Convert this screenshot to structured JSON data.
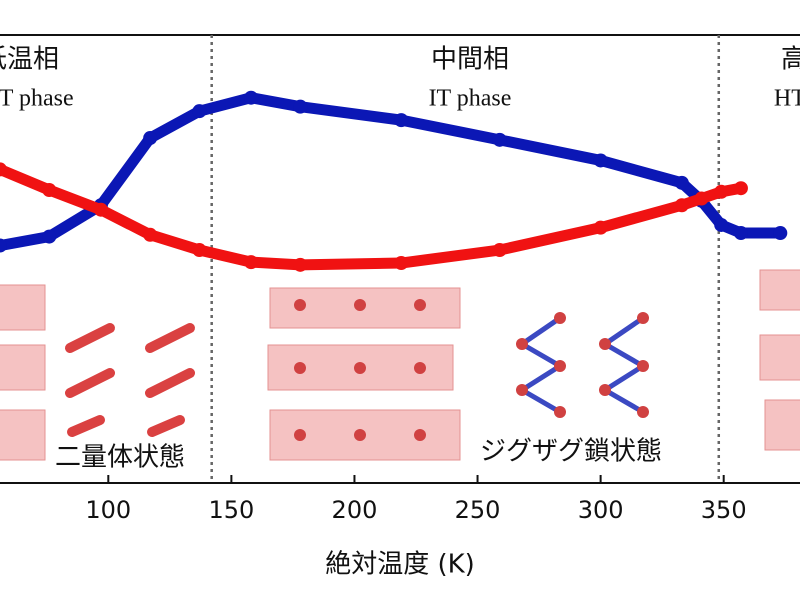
{
  "chart_data": {
    "type": "line",
    "x_label": "絶対温度 (K)",
    "xlim": [
      56,
      381
    ],
    "ylim": [
      0,
      100
    ],
    "xticks": [
      100,
      150,
      200,
      250,
      300,
      350
    ],
    "x": [
      56,
      76,
      97,
      117,
      137,
      158,
      178,
      219,
      259,
      300,
      333,
      341,
      349,
      357,
      373
    ],
    "series": [
      {
        "color": "#0b17b5",
        "values": [
          53,
          55,
          62,
          77,
          83,
          86,
          84,
          81,
          76.6,
          72,
          67,
          63,
          57.6,
          55.8,
          55.8
        ]
      },
      {
        "color": "#f01212",
        "values": [
          70,
          65.4,
          61,
          55.4,
          52,
          49.3,
          48.7,
          49.1,
          52,
          57,
          62,
          63.5,
          65,
          65.8,
          null
        ]
      }
    ],
    "phase_boundaries": [
      142,
      348
    ],
    "phases": [
      {
        "name": "低温相",
        "label": "LT phase"
      },
      {
        "name": "中間相",
        "label": "IT phase"
      },
      {
        "name": "高温相",
        "label": "HT phase"
      }
    ],
    "annotations": [
      "二量体状態",
      "ジグザグ鎖状態"
    ]
  }
}
